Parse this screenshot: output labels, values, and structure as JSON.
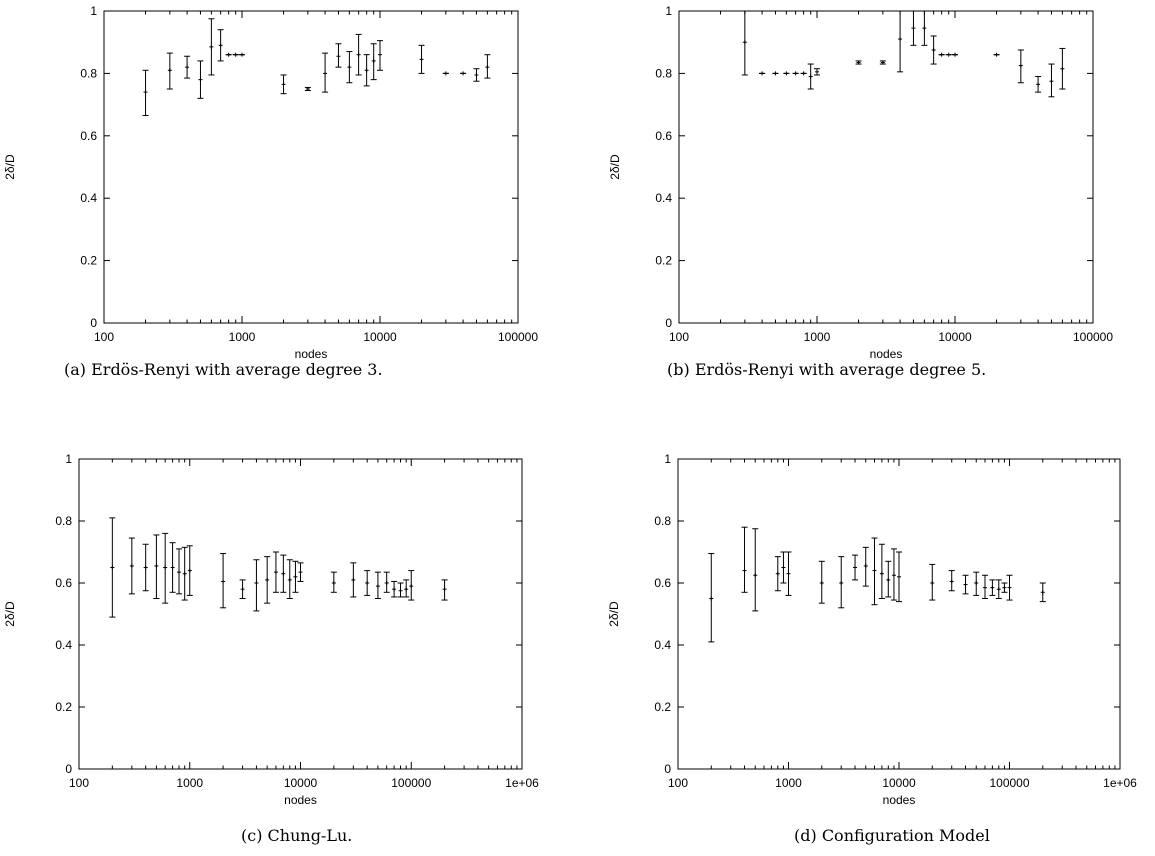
{
  "figure": {
    "captions": [
      "(a) Erdös-Renyi with average degree 3.",
      "(b) Erdös-Renyi with average degree 5.",
      "(c) Chung-Lu.",
      "(d) Configuration Model"
    ]
  },
  "chart_data": [
    {
      "type": "scatter",
      "error_bars": true,
      "title": "",
      "xlabel": "nodes",
      "ylabel": "2δ/D",
      "xscale": "log",
      "xlim": [
        100,
        100000
      ],
      "ylim": [
        0,
        1
      ],
      "xticks": [
        100,
        1000,
        10000,
        100000
      ],
      "xtick_labels": [
        "100",
        "1000",
        "10000",
        "100000"
      ],
      "yticks": [
        0,
        0.2,
        0.4,
        0.6,
        0.8,
        1
      ],
      "ytick_labels": [
        "0",
        "0.2",
        "0.4",
        "0.6",
        "0.8",
        "1"
      ],
      "grid": false,
      "points": [
        {
          "x": 200,
          "y": 0.74,
          "lo": 0.665,
          "hi": 0.81
        },
        {
          "x": 300,
          "y": 0.81,
          "lo": 0.75,
          "hi": 0.865
        },
        {
          "x": 400,
          "y": 0.82,
          "lo": 0.785,
          "hi": 0.855
        },
        {
          "x": 500,
          "y": 0.78,
          "lo": 0.72,
          "hi": 0.84
        },
        {
          "x": 600,
          "y": 0.885,
          "lo": 0.795,
          "hi": 0.975
        },
        {
          "x": 700,
          "y": 0.89,
          "lo": 0.84,
          "hi": 0.94
        },
        {
          "x": 800,
          "y": 0.86,
          "lo": 0.86,
          "hi": 0.86
        },
        {
          "x": 900,
          "y": 0.86,
          "lo": 0.86,
          "hi": 0.86
        },
        {
          "x": 1000,
          "y": 0.86,
          "lo": 0.86,
          "hi": 0.86
        },
        {
          "x": 2000,
          "y": 0.765,
          "lo": 0.735,
          "hi": 0.795
        },
        {
          "x": 3000,
          "y": 0.75,
          "lo": 0.745,
          "hi": 0.755
        },
        {
          "x": 4000,
          "y": 0.8,
          "lo": 0.74,
          "hi": 0.865
        },
        {
          "x": 5000,
          "y": 0.855,
          "lo": 0.82,
          "hi": 0.895
        },
        {
          "x": 6000,
          "y": 0.82,
          "lo": 0.77,
          "hi": 0.87
        },
        {
          "x": 7000,
          "y": 0.86,
          "lo": 0.795,
          "hi": 0.925
        },
        {
          "x": 8000,
          "y": 0.81,
          "lo": 0.76,
          "hi": 0.86
        },
        {
          "x": 9000,
          "y": 0.84,
          "lo": 0.78,
          "hi": 0.895
        },
        {
          "x": 10000,
          "y": 0.86,
          "lo": 0.81,
          "hi": 0.905
        },
        {
          "x": 20000,
          "y": 0.845,
          "lo": 0.8,
          "hi": 0.89
        },
        {
          "x": 30000,
          "y": 0.8,
          "lo": 0.8,
          "hi": 0.8
        },
        {
          "x": 40000,
          "y": 0.8,
          "lo": 0.8,
          "hi": 0.8
        },
        {
          "x": 50000,
          "y": 0.795,
          "lo": 0.775,
          "hi": 0.815
        },
        {
          "x": 60000,
          "y": 0.82,
          "lo": 0.785,
          "hi": 0.86
        }
      ]
    },
    {
      "type": "scatter",
      "error_bars": true,
      "title": "",
      "xlabel": "nodes",
      "ylabel": "2δ/D",
      "xscale": "log",
      "xlim": [
        100,
        100000
      ],
      "ylim": [
        0,
        1
      ],
      "xticks": [
        100,
        1000,
        10000,
        100000
      ],
      "xtick_labels": [
        "100",
        "1000",
        "10000",
        "100000"
      ],
      "yticks": [
        0,
        0.2,
        0.4,
        0.6,
        0.8,
        1
      ],
      "ytick_labels": [
        "0",
        "0.2",
        "0.4",
        "0.6",
        "0.8",
        "1"
      ],
      "grid": false,
      "points": [
        {
          "x": 300,
          "y": 0.9,
          "lo": 0.795,
          "hi": 1.0
        },
        {
          "x": 400,
          "y": 0.8,
          "lo": 0.8,
          "hi": 0.8
        },
        {
          "x": 500,
          "y": 0.8,
          "lo": 0.8,
          "hi": 0.8
        },
        {
          "x": 600,
          "y": 0.8,
          "lo": 0.8,
          "hi": 0.8
        },
        {
          "x": 700,
          "y": 0.8,
          "lo": 0.8,
          "hi": 0.8
        },
        {
          "x": 800,
          "y": 0.8,
          "lo": 0.8,
          "hi": 0.8
        },
        {
          "x": 900,
          "y": 0.79,
          "lo": 0.75,
          "hi": 0.83
        },
        {
          "x": 1000,
          "y": 0.805,
          "lo": 0.795,
          "hi": 0.815
        },
        {
          "x": 2000,
          "y": 0.835,
          "lo": 0.83,
          "hi": 0.84
        },
        {
          "x": 3000,
          "y": 0.835,
          "lo": 0.83,
          "hi": 0.84
        },
        {
          "x": 4000,
          "y": 0.91,
          "lo": 0.805,
          "hi": 1.0
        },
        {
          "x": 5000,
          "y": 0.945,
          "lo": 0.89,
          "hi": 1.0
        },
        {
          "x": 6000,
          "y": 0.945,
          "lo": 0.89,
          "hi": 1.0
        },
        {
          "x": 7000,
          "y": 0.875,
          "lo": 0.83,
          "hi": 0.92
        },
        {
          "x": 8000,
          "y": 0.86,
          "lo": 0.86,
          "hi": 0.86
        },
        {
          "x": 9000,
          "y": 0.86,
          "lo": 0.86,
          "hi": 0.86
        },
        {
          "x": 10000,
          "y": 0.86,
          "lo": 0.86,
          "hi": 0.86
        },
        {
          "x": 20000,
          "y": 0.86,
          "lo": 0.86,
          "hi": 0.86
        },
        {
          "x": 30000,
          "y": 0.825,
          "lo": 0.77,
          "hi": 0.875
        },
        {
          "x": 40000,
          "y": 0.765,
          "lo": 0.74,
          "hi": 0.79
        },
        {
          "x": 50000,
          "y": 0.775,
          "lo": 0.725,
          "hi": 0.83
        },
        {
          "x": 60000,
          "y": 0.815,
          "lo": 0.75,
          "hi": 0.88
        }
      ]
    },
    {
      "type": "scatter",
      "error_bars": true,
      "title": "",
      "xlabel": "nodes",
      "ylabel": "2δ/D",
      "xscale": "log",
      "xlim": [
        100,
        1000000
      ],
      "ylim": [
        0,
        1
      ],
      "xticks": [
        100,
        1000,
        10000,
        100000,
        1000000
      ],
      "xtick_labels": [
        "100",
        "1000",
        "10000",
        "100000",
        "1e+06"
      ],
      "yticks": [
        0,
        0.2,
        0.4,
        0.6,
        0.8,
        1
      ],
      "ytick_labels": [
        "0",
        "0.2",
        "0.4",
        "0.6",
        "0.8",
        "1"
      ],
      "grid": false,
      "points": [
        {
          "x": 200,
          "y": 0.65,
          "lo": 0.49,
          "hi": 0.81
        },
        {
          "x": 300,
          "y": 0.655,
          "lo": 0.565,
          "hi": 0.745
        },
        {
          "x": 400,
          "y": 0.65,
          "lo": 0.575,
          "hi": 0.725
        },
        {
          "x": 500,
          "y": 0.655,
          "lo": 0.55,
          "hi": 0.755
        },
        {
          "x": 600,
          "y": 0.65,
          "lo": 0.535,
          "hi": 0.76
        },
        {
          "x": 700,
          "y": 0.65,
          "lo": 0.57,
          "hi": 0.73
        },
        {
          "x": 800,
          "y": 0.635,
          "lo": 0.565,
          "hi": 0.71
        },
        {
          "x": 900,
          "y": 0.63,
          "lo": 0.545,
          "hi": 0.715
        },
        {
          "x": 1000,
          "y": 0.64,
          "lo": 0.56,
          "hi": 0.72
        },
        {
          "x": 2000,
          "y": 0.605,
          "lo": 0.52,
          "hi": 0.695
        },
        {
          "x": 3000,
          "y": 0.58,
          "lo": 0.55,
          "hi": 0.61
        },
        {
          "x": 4000,
          "y": 0.6,
          "lo": 0.51,
          "hi": 0.675
        },
        {
          "x": 5000,
          "y": 0.61,
          "lo": 0.535,
          "hi": 0.685
        },
        {
          "x": 6000,
          "y": 0.635,
          "lo": 0.57,
          "hi": 0.7
        },
        {
          "x": 7000,
          "y": 0.63,
          "lo": 0.57,
          "hi": 0.69
        },
        {
          "x": 8000,
          "y": 0.61,
          "lo": 0.55,
          "hi": 0.675
        },
        {
          "x": 9000,
          "y": 0.62,
          "lo": 0.57,
          "hi": 0.67
        },
        {
          "x": 10000,
          "y": 0.635,
          "lo": 0.605,
          "hi": 0.665
        },
        {
          "x": 20000,
          "y": 0.6,
          "lo": 0.57,
          "hi": 0.635
        },
        {
          "x": 30000,
          "y": 0.61,
          "lo": 0.555,
          "hi": 0.665
        },
        {
          "x": 40000,
          "y": 0.6,
          "lo": 0.56,
          "hi": 0.64
        },
        {
          "x": 50000,
          "y": 0.59,
          "lo": 0.55,
          "hi": 0.635
        },
        {
          "x": 60000,
          "y": 0.6,
          "lo": 0.57,
          "hi": 0.635
        },
        {
          "x": 70000,
          "y": 0.58,
          "lo": 0.555,
          "hi": 0.605
        },
        {
          "x": 80000,
          "y": 0.575,
          "lo": 0.555,
          "hi": 0.6
        },
        {
          "x": 90000,
          "y": 0.58,
          "lo": 0.555,
          "hi": 0.61
        },
        {
          "x": 100000,
          "y": 0.59,
          "lo": 0.545,
          "hi": 0.64
        },
        {
          "x": 200000,
          "y": 0.58,
          "lo": 0.545,
          "hi": 0.61
        }
      ]
    },
    {
      "type": "scatter",
      "error_bars": true,
      "title": "",
      "xlabel": "nodes",
      "ylabel": "2δ/D",
      "xscale": "log",
      "xlim": [
        100,
        1000000
      ],
      "ylim": [
        0,
        1
      ],
      "xticks": [
        100,
        1000,
        10000,
        100000,
        1000000
      ],
      "xtick_labels": [
        "100",
        "1000",
        "10000",
        "100000",
        "1e+06"
      ],
      "yticks": [
        0,
        0.2,
        0.4,
        0.6,
        0.8,
        1
      ],
      "ytick_labels": [
        "0",
        "0.2",
        "0.4",
        "0.6",
        "0.8",
        "1"
      ],
      "grid": false,
      "points": [
        {
          "x": 200,
          "y": 0.55,
          "lo": 0.41,
          "hi": 0.695
        },
        {
          "x": 400,
          "y": 0.64,
          "lo": 0.57,
          "hi": 0.78
        },
        {
          "x": 500,
          "y": 0.625,
          "lo": 0.51,
          "hi": 0.775
        },
        {
          "x": 800,
          "y": 0.63,
          "lo": 0.575,
          "hi": 0.685
        },
        {
          "x": 900,
          "y": 0.65,
          "lo": 0.6,
          "hi": 0.7
        },
        {
          "x": 1000,
          "y": 0.63,
          "lo": 0.56,
          "hi": 0.7
        },
        {
          "x": 2000,
          "y": 0.6,
          "lo": 0.535,
          "hi": 0.67
        },
        {
          "x": 3000,
          "y": 0.6,
          "lo": 0.52,
          "hi": 0.685
        },
        {
          "x": 4000,
          "y": 0.65,
          "lo": 0.61,
          "hi": 0.69
        },
        {
          "x": 5000,
          "y": 0.655,
          "lo": 0.59,
          "hi": 0.715
        },
        {
          "x": 6000,
          "y": 0.64,
          "lo": 0.53,
          "hi": 0.745
        },
        {
          "x": 7000,
          "y": 0.63,
          "lo": 0.55,
          "hi": 0.725
        },
        {
          "x": 8000,
          "y": 0.61,
          "lo": 0.555,
          "hi": 0.67
        },
        {
          "x": 9000,
          "y": 0.625,
          "lo": 0.545,
          "hi": 0.71
        },
        {
          "x": 10000,
          "y": 0.62,
          "lo": 0.54,
          "hi": 0.7
        },
        {
          "x": 20000,
          "y": 0.6,
          "lo": 0.545,
          "hi": 0.66
        },
        {
          "x": 30000,
          "y": 0.605,
          "lo": 0.575,
          "hi": 0.64
        },
        {
          "x": 40000,
          "y": 0.595,
          "lo": 0.565,
          "hi": 0.625
        },
        {
          "x": 50000,
          "y": 0.6,
          "lo": 0.56,
          "hi": 0.635
        },
        {
          "x": 60000,
          "y": 0.585,
          "lo": 0.55,
          "hi": 0.625
        },
        {
          "x": 70000,
          "y": 0.585,
          "lo": 0.56,
          "hi": 0.61
        },
        {
          "x": 80000,
          "y": 0.58,
          "lo": 0.55,
          "hi": 0.61
        },
        {
          "x": 90000,
          "y": 0.585,
          "lo": 0.57,
          "hi": 0.6
        },
        {
          "x": 100000,
          "y": 0.585,
          "lo": 0.545,
          "hi": 0.625
        },
        {
          "x": 200000,
          "y": 0.57,
          "lo": 0.54,
          "hi": 0.6
        }
      ]
    }
  ]
}
